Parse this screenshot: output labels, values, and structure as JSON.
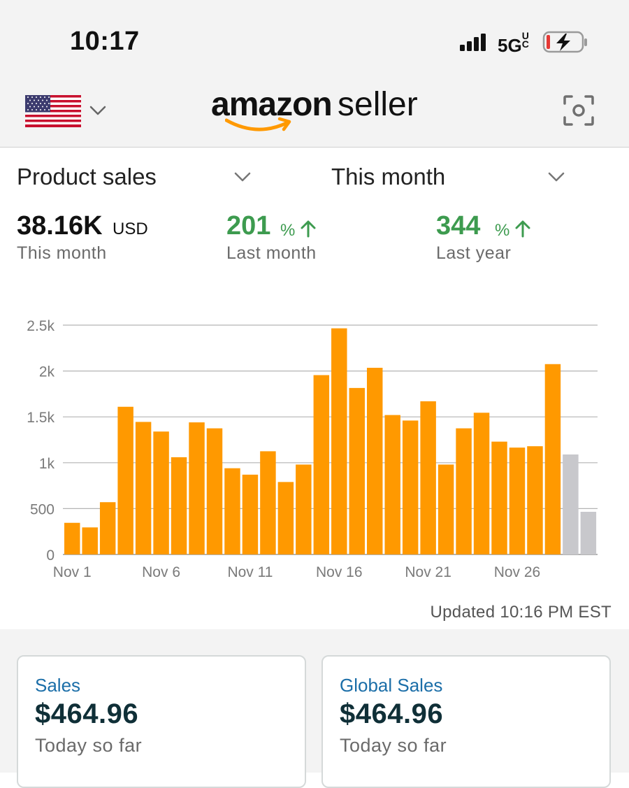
{
  "status_bar": {
    "time": "10:17",
    "network": "5G",
    "network_suffix": "UC",
    "signal_icon": "signal-bars-icon",
    "battery_icon": "battery-charging-icon"
  },
  "header": {
    "logo_word_1": "amazon",
    "logo_word_2": "seller",
    "flag_icon": "us-flag-icon",
    "scan_icon": "scan-icon"
  },
  "selectors": {
    "metric": "Product sales",
    "period": "This month"
  },
  "metrics": {
    "total": {
      "value": "38.16K",
      "unit": "USD",
      "caption": "This month"
    },
    "vs_last_month": {
      "value": "201",
      "unit": "%",
      "caption": "Last month"
    },
    "vs_last_year": {
      "value": "344",
      "unit": "%",
      "caption": "Last year"
    }
  },
  "chart_data": {
    "type": "bar",
    "title": "",
    "xlabel": "",
    "ylabel": "",
    "ylim": [
      0,
      2500
    ],
    "yticks": [
      "0",
      "500",
      "1k",
      "1.5k",
      "2k",
      "2.5k"
    ],
    "x_tick_labels": [
      "Nov 1",
      "Nov 6",
      "Nov 11",
      "Nov 16",
      "Nov 21",
      "Nov 26"
    ],
    "grid": true,
    "colors": {
      "actual": "#ff9900",
      "projected": "#c8c8cc"
    },
    "categories": [
      "Nov 1",
      "Nov 2",
      "Nov 3",
      "Nov 4",
      "Nov 5",
      "Nov 6",
      "Nov 7",
      "Nov 8",
      "Nov 9",
      "Nov 10",
      "Nov 11",
      "Nov 12",
      "Nov 13",
      "Nov 14",
      "Nov 15",
      "Nov 16",
      "Nov 17",
      "Nov 18",
      "Nov 19",
      "Nov 20",
      "Nov 21",
      "Nov 22",
      "Nov 23",
      "Nov 24",
      "Nov 25",
      "Nov 26",
      "Nov 27",
      "Nov 28",
      "Nov 29",
      "Nov 30"
    ],
    "values": [
      345,
      295,
      570,
      1610,
      1445,
      1340,
      1060,
      1440,
      1375,
      940,
      870,
      1125,
      790,
      980,
      1955,
      2465,
      1815,
      2035,
      1520,
      1460,
      1670,
      980,
      1375,
      1545,
      1230,
      1165,
      1180,
      2075,
      1090,
      465
    ],
    "projected": [
      false,
      false,
      false,
      false,
      false,
      false,
      false,
      false,
      false,
      false,
      false,
      false,
      false,
      false,
      false,
      false,
      false,
      false,
      false,
      false,
      false,
      false,
      false,
      false,
      false,
      false,
      false,
      false,
      true,
      true
    ]
  },
  "updated_text": "Updated 10:16 PM EST",
  "cards": [
    {
      "title": "Sales",
      "amount": "$464.96",
      "caption": "Today so far"
    },
    {
      "title": "Global Sales",
      "amount": "$464.96",
      "caption": "Today so far"
    }
  ]
}
